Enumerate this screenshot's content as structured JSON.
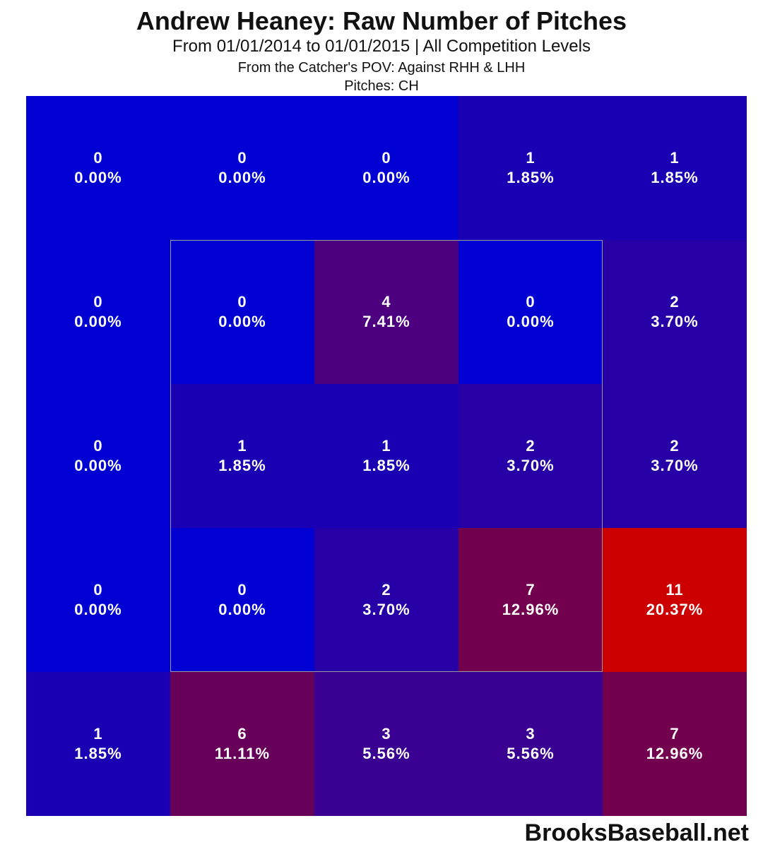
{
  "chart_data": {
    "type": "heatmap",
    "title": "Andrew Heaney: Raw Number of Pitches",
    "subtitle": "From 01/01/2014 to 01/01/2015 | All Competition Levels",
    "subtitle2": "From the Catcher's POV:   Against RHH & LHH",
    "subtitle3": "Pitches:  CH",
    "rows": 5,
    "cols": 5,
    "strike_zone": "inner 3x3 cells outlined",
    "cells": [
      [
        {
          "count": "0",
          "pct": "0.00%",
          "color": "#0000d2"
        },
        {
          "count": "0",
          "pct": "0.00%",
          "color": "#0000d2"
        },
        {
          "count": "0",
          "pct": "0.00%",
          "color": "#0000d2"
        },
        {
          "count": "1",
          "pct": "1.85%",
          "color": "#1a00b2"
        },
        {
          "count": "1",
          "pct": "1.85%",
          "color": "#1a00b2"
        }
      ],
      [
        {
          "count": "0",
          "pct": "0.00%",
          "color": "#0000d2"
        },
        {
          "count": "0",
          "pct": "0.00%",
          "color": "#0000d2"
        },
        {
          "count": "4",
          "pct": "7.41%",
          "color": "#4c0080"
        },
        {
          "count": "0",
          "pct": "0.00%",
          "color": "#0000d2"
        },
        {
          "count": "2",
          "pct": "3.70%",
          "color": "#2600a6"
        }
      ],
      [
        {
          "count": "0",
          "pct": "0.00%",
          "color": "#0000d2"
        },
        {
          "count": "1",
          "pct": "1.85%",
          "color": "#1a00b2"
        },
        {
          "count": "1",
          "pct": "1.85%",
          "color": "#1a00b2"
        },
        {
          "count": "2",
          "pct": "3.70%",
          "color": "#2600a6"
        },
        {
          "count": "2",
          "pct": "3.70%",
          "color": "#2600a6"
        }
      ],
      [
        {
          "count": "0",
          "pct": "0.00%",
          "color": "#0000d2"
        },
        {
          "count": "0",
          "pct": "0.00%",
          "color": "#0000d2"
        },
        {
          "count": "2",
          "pct": "3.70%",
          "color": "#2600a6"
        },
        {
          "count": "7",
          "pct": "12.96%",
          "color": "#72004e"
        },
        {
          "count": "11",
          "pct": "20.37%",
          "color": "#cc0000"
        }
      ],
      [
        {
          "count": "1",
          "pct": "1.85%",
          "color": "#1a00b2"
        },
        {
          "count": "6",
          "pct": "11.11%",
          "color": "#660059"
        },
        {
          "count": "3",
          "pct": "5.56%",
          "color": "#3a0092"
        },
        {
          "count": "3",
          "pct": "5.56%",
          "color": "#3a0092"
        },
        {
          "count": "7",
          "pct": "12.96%",
          "color": "#72004e"
        }
      ]
    ]
  },
  "watermark": "BrooksBaseball.net"
}
